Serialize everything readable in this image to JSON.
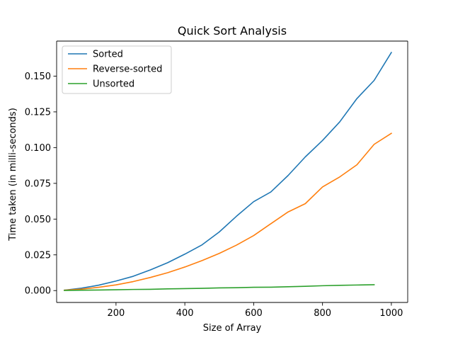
{
  "chart_data": {
    "type": "line",
    "title": "Quick Sort Analysis",
    "xlabel": "Size of Array",
    "ylabel": "Time taken (in milli-seconds)",
    "xlim": [
      27.5,
      1047.5
    ],
    "ylim": [
      -0.0083,
      0.1745
    ],
    "xticks": [
      200,
      400,
      600,
      800,
      1000
    ],
    "xtick_labels": [
      "200",
      "400",
      "600",
      "800",
      "1000"
    ],
    "yticks": [
      0.0,
      0.025,
      0.05,
      0.075,
      0.1,
      0.125,
      0.15
    ],
    "ytick_labels": [
      "0.000",
      "0.025",
      "0.050",
      "0.075",
      "0.100",
      "0.125",
      "0.150"
    ],
    "grid": false,
    "legend_position": "upper-left",
    "series": [
      {
        "name": "Sorted",
        "color": "#1f77b4",
        "x": [
          50,
          100,
          150,
          200,
          250,
          300,
          350,
          400,
          450,
          500,
          550,
          600,
          650,
          700,
          750,
          800,
          850,
          900,
          950,
          1000
        ],
        "y": [
          0.0003,
          0.0017,
          0.0038,
          0.0067,
          0.01,
          0.0145,
          0.0195,
          0.0255,
          0.032,
          0.041,
          0.052,
          0.0622,
          0.069,
          0.0805,
          0.0935,
          0.105,
          0.118,
          0.1343,
          0.147,
          0.1665
        ]
      },
      {
        "name": "Reverse-sorted",
        "color": "#ff7f0e",
        "x": [
          50,
          100,
          150,
          200,
          250,
          300,
          350,
          400,
          450,
          500,
          550,
          600,
          650,
          700,
          750,
          800,
          850,
          900,
          950,
          1000
        ],
        "y": [
          0.0003,
          0.001,
          0.0023,
          0.004,
          0.0063,
          0.0092,
          0.0125,
          0.0165,
          0.021,
          0.026,
          0.0318,
          0.0385,
          0.0468,
          0.055,
          0.0608,
          0.0725,
          0.0795,
          0.088,
          0.1023,
          0.11
        ]
      },
      {
        "name": "Unsorted",
        "color": "#2ca02c",
        "x": [
          50,
          100,
          150,
          200,
          250,
          300,
          350,
          400,
          450,
          500,
          550,
          600,
          650,
          700,
          750,
          800,
          850,
          900,
          950
        ],
        "y": [
          0.0001,
          0.0003,
          0.0004,
          0.0006,
          0.0008,
          0.0009,
          0.0012,
          0.0014,
          0.0016,
          0.0019,
          0.002,
          0.0023,
          0.0024,
          0.0027,
          0.003,
          0.0034,
          0.0037,
          0.0039,
          0.0041
        ]
      }
    ]
  }
}
